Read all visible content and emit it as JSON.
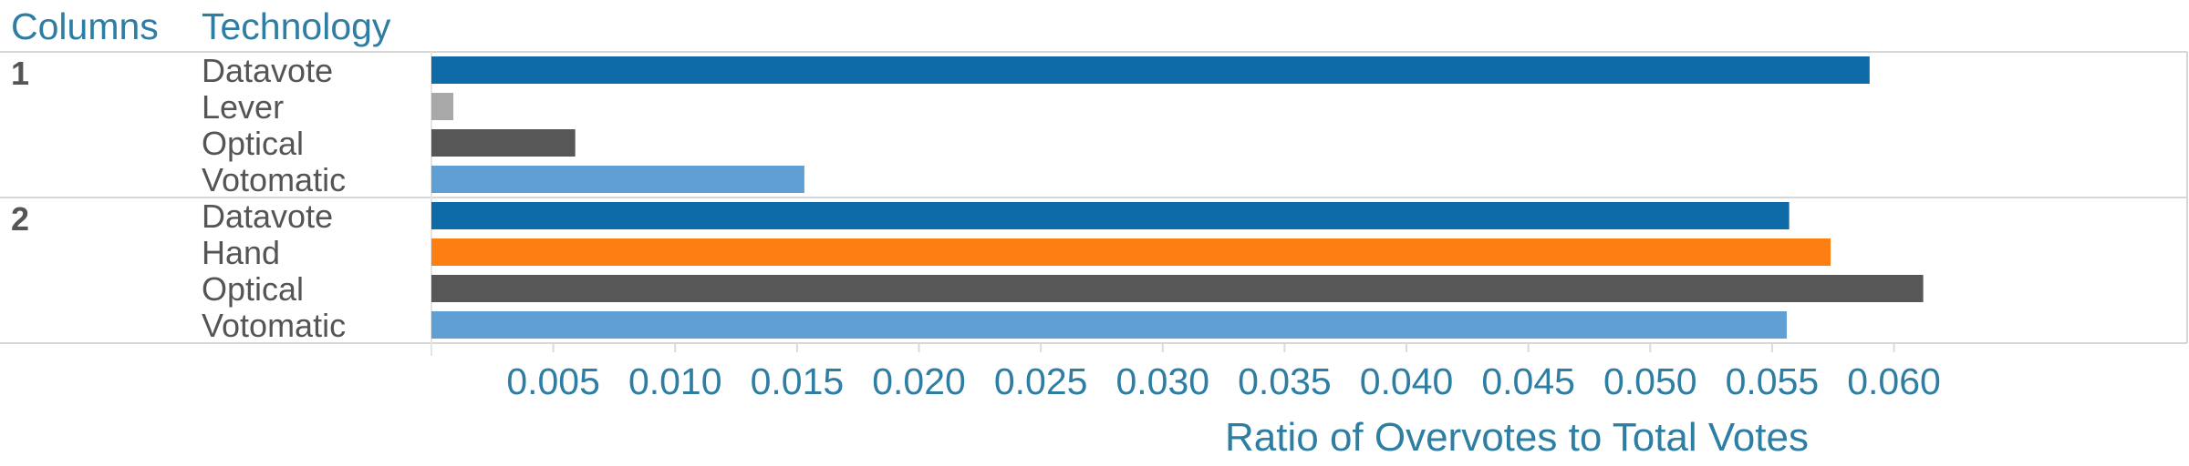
{
  "headers": {
    "columns": "Columns",
    "technology": "Technology"
  },
  "chart_data": {
    "type": "bar",
    "orientation": "horizontal",
    "xlabel": "Ratio of Overvotes to Total Votes",
    "xlim": [
      0,
      0.0645
    ],
    "xticks": [
      0.005,
      0.01,
      0.015,
      0.02,
      0.025,
      0.03,
      0.035,
      0.04,
      0.045,
      0.05,
      0.055,
      0.06
    ],
    "xtick_labels": [
      "0.005",
      "0.010",
      "0.015",
      "0.020",
      "0.025",
      "0.030",
      "0.035",
      "0.040",
      "0.045",
      "0.050",
      "0.055",
      "0.060"
    ],
    "grid": false,
    "colors": {
      "Datavote": "#0f6aa8",
      "Lever": "#a8a8a8",
      "Optical": "#575757",
      "Votomatic": "#5f9fd4",
      "Hand": "#fd7f14"
    },
    "groups": [
      {
        "label": "1",
        "bars": [
          {
            "category": "Datavote",
            "value": 0.059
          },
          {
            "category": "Lever",
            "value": 0.0009
          },
          {
            "category": "Optical",
            "value": 0.0059
          },
          {
            "category": "Votomatic",
            "value": 0.0153
          }
        ]
      },
      {
        "label": "2",
        "bars": [
          {
            "category": "Datavote",
            "value": 0.0557
          },
          {
            "category": "Hand",
            "value": 0.0574
          },
          {
            "category": "Optical",
            "value": 0.0612
          },
          {
            "category": "Votomatic",
            "value": 0.0556
          }
        ]
      }
    ]
  }
}
